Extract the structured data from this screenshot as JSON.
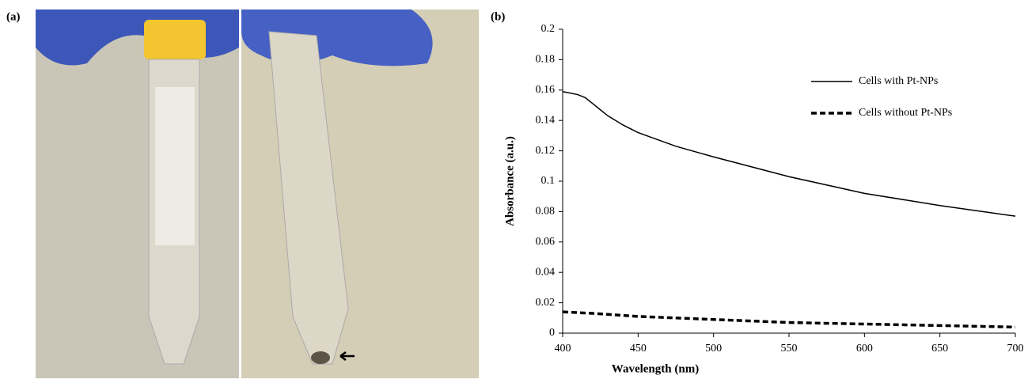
{
  "figure": {
    "panel_a_label": "(a)",
    "panel_b_label": "(b)"
  },
  "chart_data": {
    "type": "line",
    "xlabel": "Wavelength (nm)",
    "ylabel": "Absorbance (a.u.)",
    "xlim": [
      400,
      700
    ],
    "xticks": [
      400,
      450,
      500,
      550,
      600,
      650,
      700
    ],
    "ylim": [
      0,
      0.2
    ],
    "yticks": [
      0,
      0.02,
      0.04,
      0.06,
      0.08,
      0.1,
      0.12,
      0.14,
      0.16,
      0.18,
      0.2
    ],
    "grid": false,
    "legend": "upper right",
    "series": [
      {
        "name": "Cells with Pt-NPs",
        "color": "#000000",
        "dash": "solid",
        "x": [
          400,
          410,
          415,
          420,
          430,
          440,
          450,
          475,
          500,
          550,
          600,
          650,
          700
        ],
        "values": [
          0.159,
          0.157,
          0.155,
          0.151,
          0.143,
          0.137,
          0.132,
          0.123,
          0.116,
          0.103,
          0.092,
          0.084,
          0.077
        ]
      },
      {
        "name": "Cells without Pt-NPs",
        "color": "#000000",
        "dash": "dashed",
        "x": [
          400,
          420,
          450,
          500,
          550,
          600,
          650,
          700
        ],
        "values": [
          0.014,
          0.013,
          0.011,
          0.009,
          0.007,
          0.006,
          0.005,
          0.004
        ]
      }
    ]
  }
}
